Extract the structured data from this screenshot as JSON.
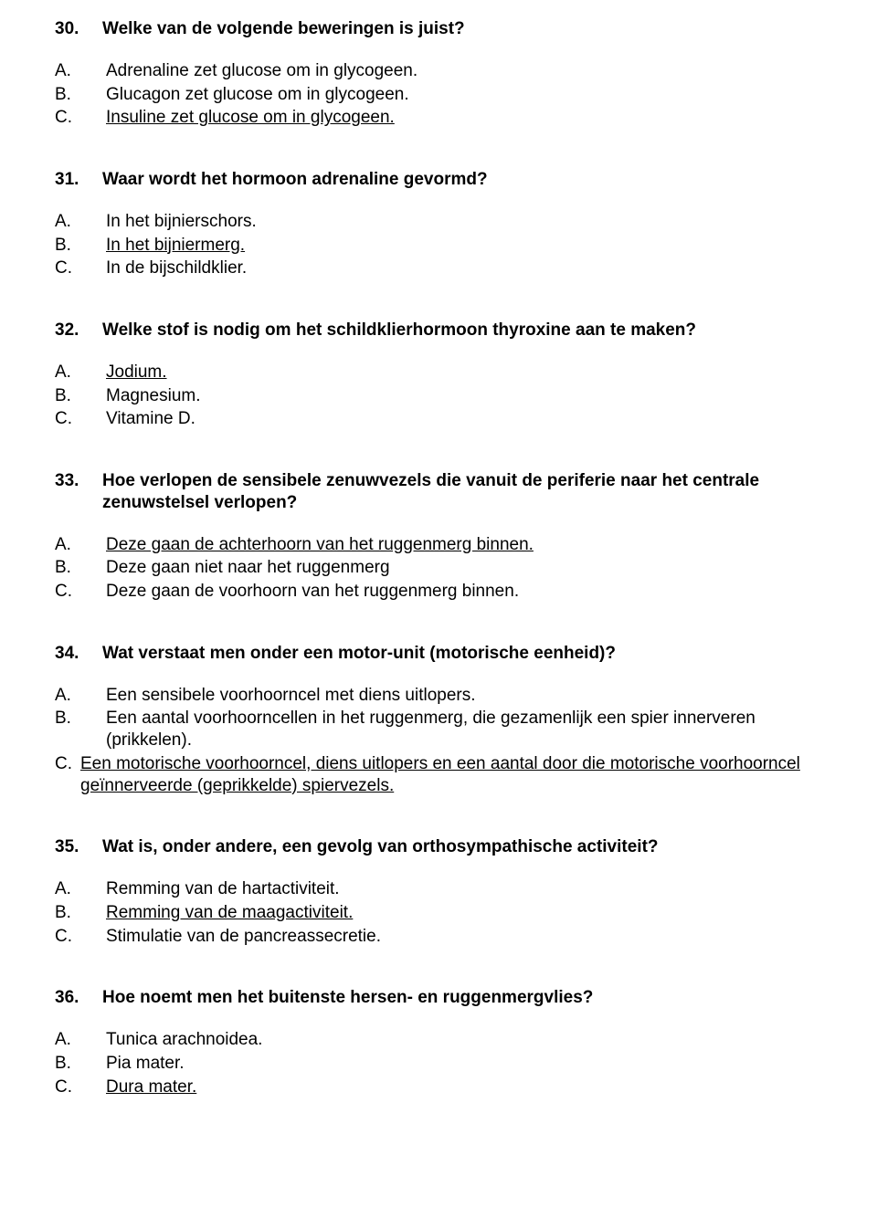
{
  "questions": [
    {
      "number": "30.",
      "text": "Welke van de volgende beweringen is juist?",
      "options": [
        {
          "letter": "A.",
          "text": "Adrenaline zet glucose om in glycogeen.",
          "indent": true,
          "underline": false
        },
        {
          "letter": "B.",
          "text": "Glucagon zet glucose om in glycogeen.",
          "indent": true,
          "underline": false
        },
        {
          "letter": "C.",
          "text": "Insuline zet glucose om in glycogeen.",
          "indent": true,
          "underline": true
        }
      ]
    },
    {
      "number": "31.",
      "text": "Waar wordt het hormoon adrenaline gevormd?",
      "options": [
        {
          "letter": "A.",
          "text": "In het bijnierschors.",
          "indent": true,
          "underline": false
        },
        {
          "letter": "B.",
          "text": "In het bijniermerg.",
          "indent": true,
          "underline": true
        },
        {
          "letter": "C.",
          "text": "In de bijschildklier.",
          "indent": true,
          "underline": false
        }
      ]
    },
    {
      "number": "32.",
      "text": "Welke stof is nodig om het schildklierhormoon thyroxine aan te maken?",
      "options": [
        {
          "letter": "A.",
          "text": "Jodium.",
          "indent": true,
          "underline": true
        },
        {
          "letter": "B.",
          "text": "Magnesium.",
          "indent": true,
          "underline": false
        },
        {
          "letter": "C.",
          "text": "Vitamine D.",
          "indent": true,
          "underline": false
        }
      ]
    },
    {
      "number": "33.",
      "text": "Hoe verlopen de sensibele zenuwvezels die vanuit de periferie naar het centrale zenuwstelsel verlopen?",
      "options": [
        {
          "letter": "A.",
          "text": "Deze gaan de achterhoorn van het ruggenmerg binnen.",
          "indent": true,
          "underline": true
        },
        {
          "letter": "B.",
          "text": "Deze gaan niet naar het ruggenmerg",
          "indent": true,
          "underline": false
        },
        {
          "letter": "C.",
          "text": "Deze gaan de voorhoorn van het ruggenmerg binnen.",
          "indent": true,
          "underline": false
        }
      ]
    },
    {
      "number": "34.",
      "text": "Wat verstaat men onder een motor-unit (motorische eenheid)?",
      "options": [
        {
          "letter": "A.",
          "text": "Een sensibele voorhoorncel met diens uitlopers.",
          "indent": true,
          "underline": false
        },
        {
          "letter": "B.",
          "text": "Een aantal voorhoorncellen in het ruggenmerg, die gezamenlijk een spier innerveren (prikkelen).",
          "indent": true,
          "underline": false
        },
        {
          "letter": "C.",
          "text": "Een motorische voorhoorncel, diens uitlopers en een aantal door die motorische voorhoorncel geïnnerveerde (geprikkelde) spiervezels.",
          "indent": false,
          "underline": true
        }
      ]
    },
    {
      "number": "35.",
      "text": "Wat is, onder andere,  een gevolg van orthosympathische activiteit?",
      "options": [
        {
          "letter": "A.",
          "text": "Remming van de hartactiviteit.",
          "indent": true,
          "underline": false
        },
        {
          "letter": "B.",
          "text": "Remming van de maagactiviteit.",
          "indent": true,
          "underline": true
        },
        {
          "letter": "C.",
          "text": "Stimulatie van de pancreassecretie.",
          "indent": true,
          "underline": false
        }
      ]
    },
    {
      "number": "36.",
      "text": "Hoe noemt men het buitenste hersen- en ruggenmergvlies?",
      "options": [
        {
          "letter": "A.",
          "text": "Tunica arachnoidea.",
          "indent": true,
          "underline": false
        },
        {
          "letter": "B.",
          "text": "Pia mater.",
          "indent": true,
          "underline": false
        },
        {
          "letter": "C.",
          "text": "Dura mater.",
          "indent": true,
          "underline": true
        }
      ]
    }
  ]
}
